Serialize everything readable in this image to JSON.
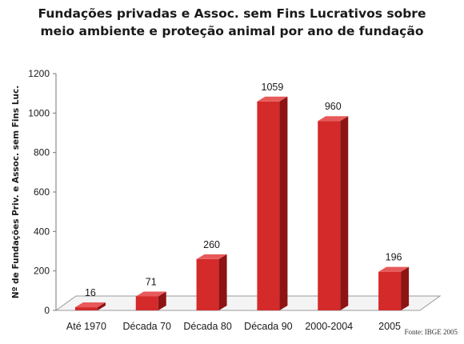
{
  "chart_data": {
    "type": "bar",
    "title_line1": "Fundações privadas e Assoc. sem Fins Lucrativos sobre",
    "title_line2": "meio ambiente e proteção animal por ano de fundação",
    "ylabel": "Nº de Fundações Priv. e Assoc. sem Fins Luc.",
    "xlabel": "",
    "categories": [
      "Até 1970",
      "Década 70",
      "Década 80",
      "Década 90",
      "2000-2004",
      "2005"
    ],
    "values": [
      16,
      71,
      260,
      1059,
      960,
      196
    ],
    "data_labels": [
      "16",
      "71",
      "260",
      "1059",
      "960",
      "196"
    ],
    "ylim": [
      0,
      1200
    ],
    "yticks": [
      "0",
      "200",
      "400",
      "600",
      "800",
      "1000",
      "1200"
    ],
    "bar_color": "#d42a2a",
    "bar_side_color": "#8e1414",
    "bar_top_color": "#e85a5a",
    "grid": false,
    "legend": "none",
    "source": "Fonte: IBGE 2005"
  }
}
